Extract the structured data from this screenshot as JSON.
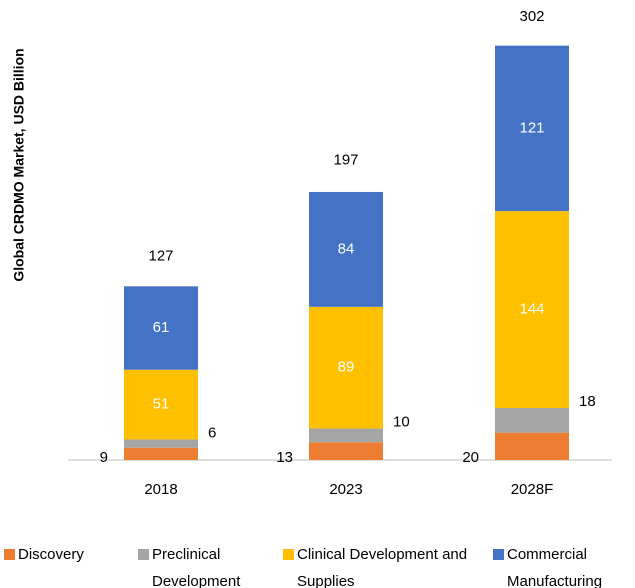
{
  "chart_data": {
    "type": "stacked-bar",
    "y_label": "Global CRDMO Market, USD Billion",
    "categories": [
      "2018",
      "2023",
      "2028F"
    ],
    "series": [
      {
        "name": "Discovery",
        "color": "#ed7d31",
        "values": [
          9,
          13,
          20
        ]
      },
      {
        "name": "Preclinical Development",
        "color": "#a5a5a5",
        "values": [
          6,
          10,
          18
        ]
      },
      {
        "name": "Clinical Development and Supplies",
        "color": "#ffc000",
        "values": [
          51,
          89,
          144
        ]
      },
      {
        "name": "Commercial Manufacturing",
        "color": "#4472c4",
        "values": [
          61,
          84,
          121
        ]
      }
    ],
    "totals": [
      127,
      197,
      302
    ]
  }
}
